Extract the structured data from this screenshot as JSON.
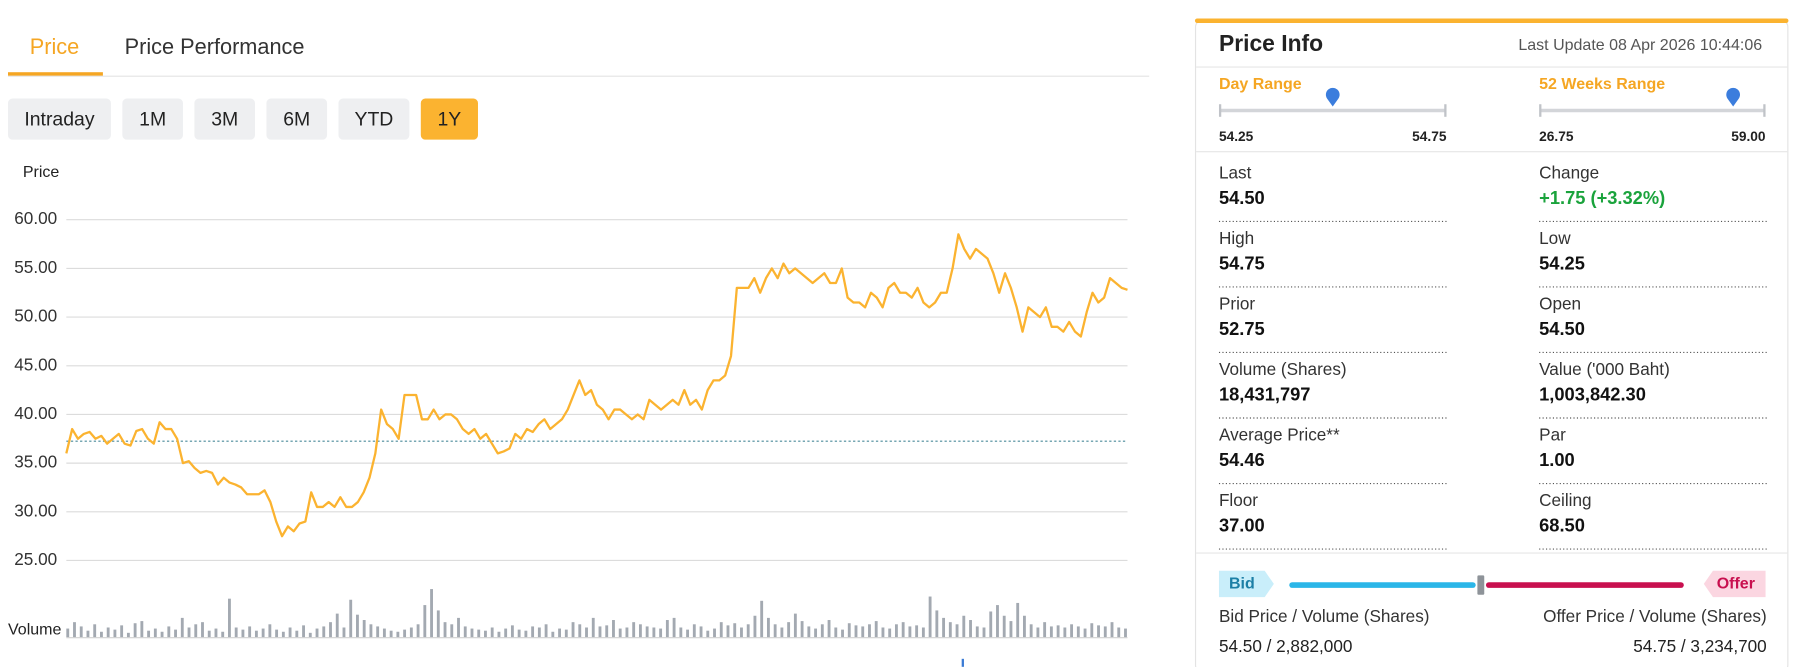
{
  "tabs": [
    "Price",
    "Price Performance"
  ],
  "ranges": [
    "Intraday",
    "1M",
    "3M",
    "6M",
    "YTD",
    "1Y"
  ],
  "active_range": 5,
  "chart_data": {
    "type": "line",
    "y_label": "Price",
    "ylim": [
      25,
      60
    ],
    "yticks": [
      {
        "value": 60,
        "label": "60.00"
      },
      {
        "value": 55,
        "label": "55.00"
      },
      {
        "value": 50,
        "label": "50.00"
      },
      {
        "value": 45,
        "label": "45.00"
      },
      {
        "value": 40,
        "label": "40.00"
      },
      {
        "value": 35,
        "label": "35.00"
      },
      {
        "value": 30,
        "label": "30.00"
      },
      {
        "value": 25,
        "label": "25.00"
      }
    ],
    "grid": true,
    "reference_line": 37.25,
    "series": [
      {
        "color": "#fbb330",
        "values": [
          36,
          38.5,
          37.5,
          38,
          38.2,
          37.5,
          37.8,
          37,
          37.5,
          38,
          37,
          36.8,
          38.3,
          38.5,
          37.5,
          37,
          39.2,
          38.5,
          38.5,
          37.5,
          35,
          35.2,
          34.5,
          34,
          34.2,
          34,
          32.8,
          33.5,
          33,
          32.8,
          32.5,
          31.8,
          31.8,
          31.8,
          32.2,
          31,
          29,
          27.5,
          28.5,
          28,
          28.8,
          29,
          32,
          30.5,
          30.5,
          31,
          30.5,
          31.5,
          30.5,
          30.5,
          31,
          32,
          33.5,
          36,
          40.5,
          39,
          38.5,
          37.5,
          42,
          42,
          42,
          39.5,
          39.5,
          40.5,
          39.5,
          40,
          40,
          39.5,
          38.5,
          38,
          38.5,
          37.5,
          38,
          37,
          36,
          36.2,
          36.5,
          38,
          37.5,
          38.5,
          38.2,
          39,
          39.5,
          38.5,
          39,
          39.5,
          40.5,
          42,
          43.5,
          42,
          42.5,
          41,
          40.5,
          39.5,
          40.5,
          40.5,
          40,
          39.5,
          40,
          39.5,
          41.5,
          41,
          40.5,
          41,
          41.5,
          41,
          42.5,
          41,
          41.5,
          40.5,
          42.5,
          43.5,
          43.5,
          44,
          46,
          53,
          53,
          53,
          54,
          52.5,
          54,
          55,
          54,
          55.5,
          54.5,
          55,
          54.5,
          54,
          53.5,
          54,
          54.5,
          53.5,
          53.5,
          55,
          52,
          51.5,
          51.5,
          51,
          52.5,
          52,
          51,
          53,
          53.5,
          52.5,
          52.5,
          52,
          53,
          51.5,
          51,
          51.5,
          52.5,
          52.5,
          55,
          58.5,
          57,
          56,
          57,
          56.5,
          56,
          54.5,
          52.5,
          54.5,
          53,
          51,
          48.5,
          51,
          50.5,
          50,
          51,
          49,
          49,
          48.5,
          49.5,
          48.5,
          48,
          50.5,
          52.5,
          51.5,
          52,
          54,
          53.5,
          53,
          52.8
        ]
      }
    ],
    "volume": {
      "label": "Volume",
      "color": "#a3a9b1",
      "values": [
        8,
        14,
        10,
        6,
        12,
        5,
        9,
        7,
        11,
        4,
        13,
        15,
        6,
        8,
        5,
        10,
        7,
        18,
        9,
        12,
        14,
        6,
        8,
        5,
        36,
        9,
        7,
        10,
        6,
        8,
        12,
        7,
        5,
        9,
        6,
        11,
        4,
        8,
        10,
        14,
        22,
        9,
        35,
        21,
        16,
        12,
        10,
        8,
        6,
        5,
        7,
        9,
        12,
        30,
        45,
        25,
        14,
        12,
        18,
        10,
        8,
        7,
        6,
        9,
        5,
        8,
        11,
        7,
        6,
        10,
        9,
        12,
        5,
        8,
        7,
        14,
        12,
        9,
        18,
        10,
        11,
        16,
        8,
        9,
        14,
        12,
        10,
        9,
        8,
        16,
        18,
        9,
        7,
        12,
        10,
        6,
        8,
        14,
        11,
        13,
        9,
        12,
        20,
        34,
        18,
        12,
        9,
        14,
        22,
        15,
        10,
        8,
        12,
        16,
        9,
        7,
        13,
        11,
        10,
        12,
        15,
        9,
        8,
        12,
        14,
        10,
        11,
        9,
        38,
        25,
        18,
        14,
        12,
        20,
        16,
        10,
        9,
        24,
        30,
        20,
        15,
        32,
        20,
        12,
        9,
        14,
        10,
        11,
        9,
        12,
        10,
        8,
        13,
        11,
        10,
        14,
        9,
        8
      ]
    }
  },
  "price_info": {
    "title": "Price Info",
    "last_update": "Last Update 08 Apr 2026 10:44:06",
    "day_range": {
      "label": "Day Range",
      "low": {
        "value": 54.25,
        "label": "54.25"
      },
      "high": {
        "value": 54.75,
        "label": "54.75"
      }
    },
    "week52_range": {
      "label": "52 Weeks Range",
      "low": {
        "value": 26.75,
        "label": "26.75"
      },
      "high": {
        "value": 59,
        "label": "59.00"
      }
    },
    "fields": [
      [
        {
          "label": "Last",
          "value": {
            "value": 54.5,
            "label": "54.50"
          }
        },
        {
          "label": "Change",
          "value": "+1.75 (+3.32%)"
        }
      ],
      [
        {
          "label": "High",
          "value": "54.75"
        },
        {
          "label": "Low",
          "value": "54.25"
        }
      ],
      [
        {
          "label": "Prior",
          "value": "52.75"
        },
        {
          "label": "Open",
          "value": "54.50"
        }
      ],
      [
        {
          "label": "Volume (Shares)",
          "value": "18,431,797"
        },
        {
          "label": "Value ('000 Baht)",
          "value": "1,003,842.30"
        }
      ],
      [
        {
          "label": "Average Price**",
          "value": "54.46"
        },
        {
          "label": "Par",
          "value": "1.00"
        }
      ],
      [
        {
          "label": "Floor",
          "value": "37.00"
        },
        {
          "label": "Ceiling",
          "value": "68.50"
        }
      ]
    ],
    "bid": {
      "tag": "Bid",
      "label": "Bid Price / Volume (Shares)",
      "value": "54.50 / 2,882,000"
    },
    "offer": {
      "tag": "Offer",
      "label": "Offer Price / Volume (Shares)",
      "value": "54.75 / 3,234,700"
    }
  }
}
